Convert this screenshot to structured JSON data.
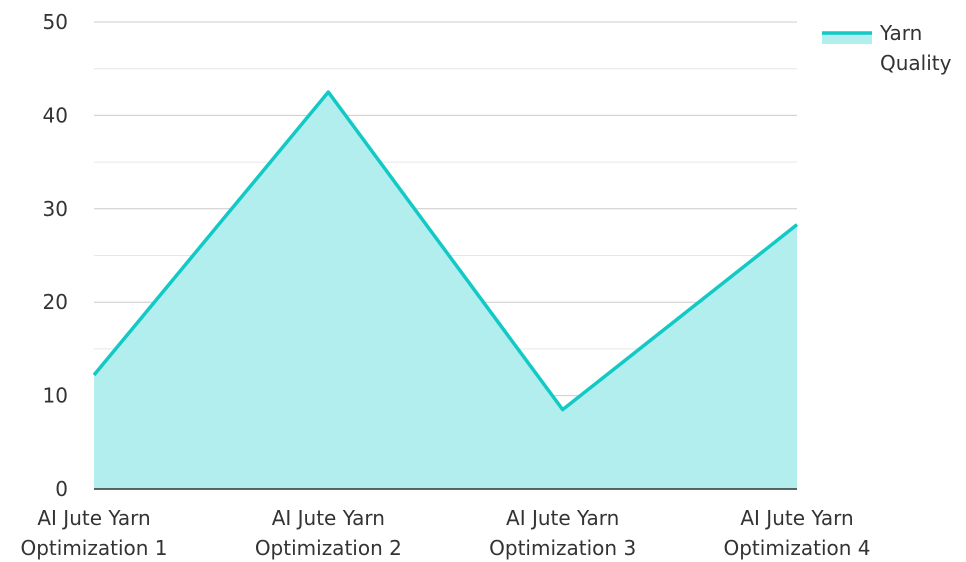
{
  "chart_data": {
    "type": "area",
    "categories": [
      [
        "AI Jute Yarn",
        "Optimization 1"
      ],
      [
        "AI Jute Yarn",
        "Optimization 2"
      ],
      [
        "AI Jute Yarn",
        "Optimization 3"
      ],
      [
        "AI Jute Yarn",
        "Optimization 4"
      ]
    ],
    "series": [
      {
        "name": [
          "Yarn",
          "Quality"
        ],
        "values": [
          12.2,
          42.5,
          8.5,
          28.3
        ]
      }
    ],
    "yticks": [
      "0",
      "10",
      "20",
      "30",
      "40",
      "50"
    ],
    "ylim": [
      0,
      50
    ],
    "grid": true,
    "legend_position": "top-right",
    "colors": {
      "line": "#12c9c6",
      "fill": "#b3eeee",
      "grid_major": "#cccccc",
      "grid_minor": "#e6e6e6",
      "axis": "#333333"
    }
  }
}
